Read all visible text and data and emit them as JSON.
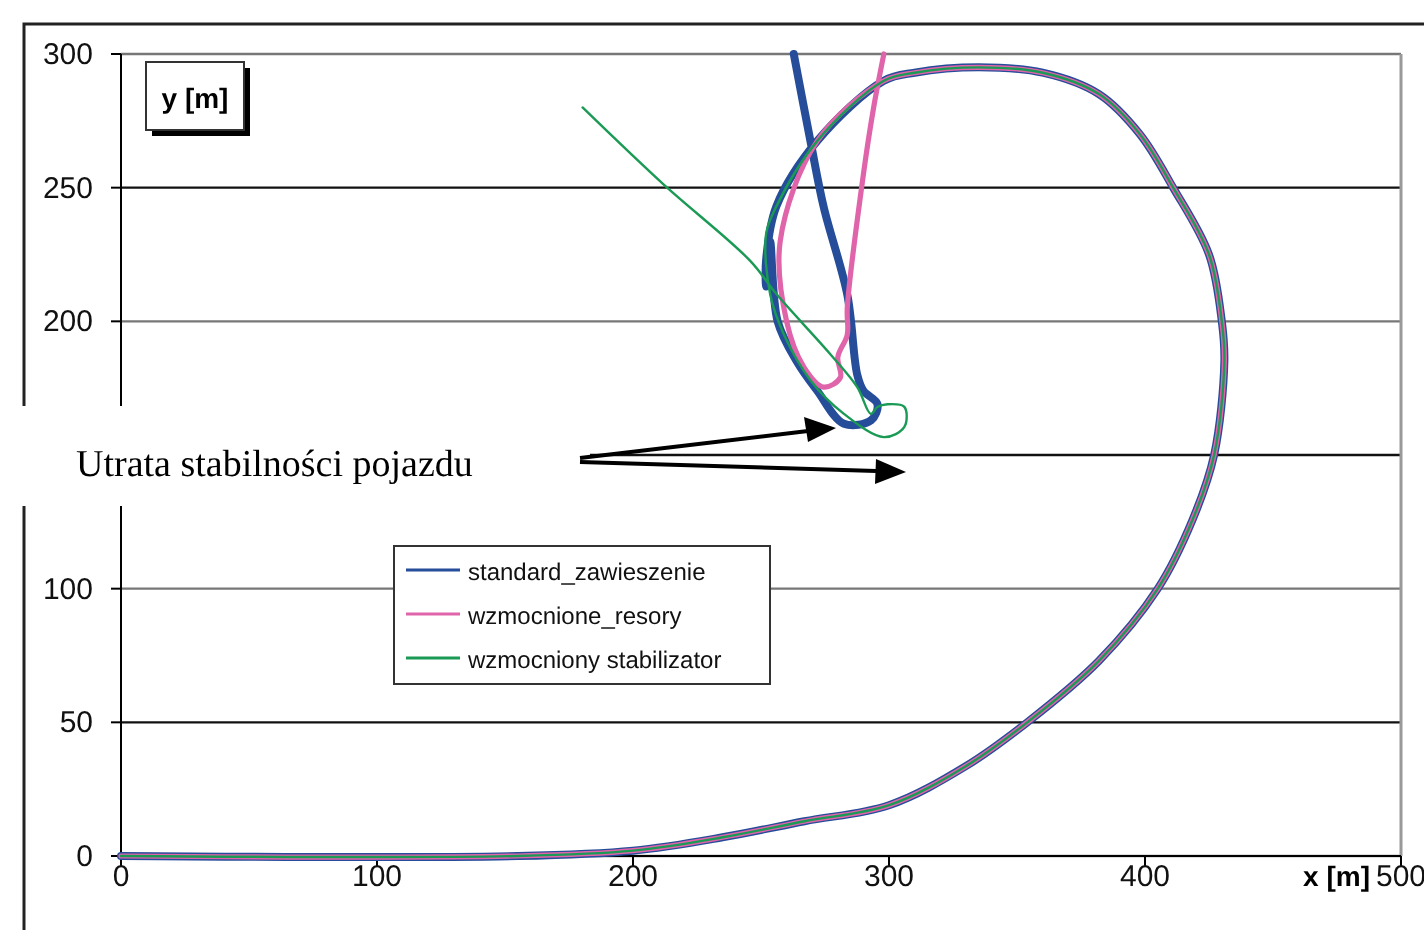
{
  "chart_data": {
    "type": "line",
    "xlabel": "x [m]",
    "ylabel": "y [m]",
    "xlim": [
      0,
      500
    ],
    "ylim": [
      0,
      300
    ],
    "xticks": [
      0,
      100,
      200,
      300,
      400,
      500
    ],
    "yticks": [
      0,
      50,
      100,
      {
        "value": 150,
        "label": null
      },
      200,
      250,
      300
    ],
    "grid": "y",
    "legend": "left",
    "marker": "none",
    "line_style": "solid",
    "annotations": [
      "Utrata stabilności pojazdu"
    ],
    "series": [
      {
        "name": "standard_zawieszenie",
        "color": "#254d9a",
        "x": [
          0,
          155,
          200,
          235,
          267,
          300,
          330,
          354,
          382,
          405,
          418.5,
          427,
          431,
          430,
          425,
          411,
          398,
          382,
          360,
          335,
          310,
          298,
          272,
          256,
          252,
          252,
          253.5,
          256.5,
          264,
          272,
          282.4,
          293,
          295.5,
          290,
          287.6,
          283.7,
          274.5,
          269.3,
          262.8
        ],
        "values": [
          0,
          0,
          2,
          7,
          13,
          19,
          33.6,
          50,
          73,
          100,
          125.6,
          150,
          185,
          200,
          225,
          250,
          270,
          285,
          293,
          295,
          293,
          290,
          267.5,
          243,
          223,
          213,
          230,
          200,
          185,
          174,
          161.7,
          163,
          169,
          174,
          180,
          210,
          242.7,
          267.5,
          300
        ]
      },
      {
        "name": "wzmocnione_resory",
        "color": "#e064aa",
        "x": [
          0,
          155,
          200,
          235,
          267,
          300,
          330,
          354,
          382,
          405,
          418.5,
          427,
          431,
          430,
          425,
          411,
          398,
          382,
          360,
          335,
          310,
          298,
          272,
          257.5,
          260,
          266.7,
          274.5,
          281,
          280,
          283.7,
          283.7,
          290,
          294,
          298
        ],
        "values": [
          0,
          0,
          2,
          7,
          13,
          19,
          33.6,
          50,
          73,
          100,
          125.6,
          150,
          185,
          200,
          225,
          250,
          270,
          285,
          293,
          295,
          293,
          290,
          267.5,
          230,
          200,
          183,
          175.4,
          179,
          186.6,
          195,
          205,
          255,
          280,
          300
        ]
      },
      {
        "name": "wzmocniony stabilizator",
        "color": "#1a9a55",
        "x": [
          0,
          155,
          200,
          235,
          267,
          300,
          330,
          354,
          382,
          405,
          418.5,
          427,
          431,
          430,
          425,
          411,
          398,
          382,
          360,
          335,
          310,
          298,
          272,
          256,
          252,
          253.6,
          259,
          269.3,
          282.4,
          298,
          306,
          306,
          299.4,
          295.5,
          292.9,
          287.6,
          277,
          256.2,
          245.7,
          211.7,
          180.3
        ],
        "values": [
          0,
          0,
          2,
          7,
          13,
          19,
          33.6,
          50,
          73,
          100,
          125.6,
          150,
          185,
          200,
          225,
          250,
          270,
          285,
          293,
          295,
          293,
          290,
          267.5,
          243,
          232.7,
          210,
          195,
          178,
          165.4,
          156.7,
          160.5,
          168,
          169,
          168,
          165.4,
          175.4,
          187.8,
          210,
          222.7,
          251.4,
          280
        ]
      }
    ]
  }
}
